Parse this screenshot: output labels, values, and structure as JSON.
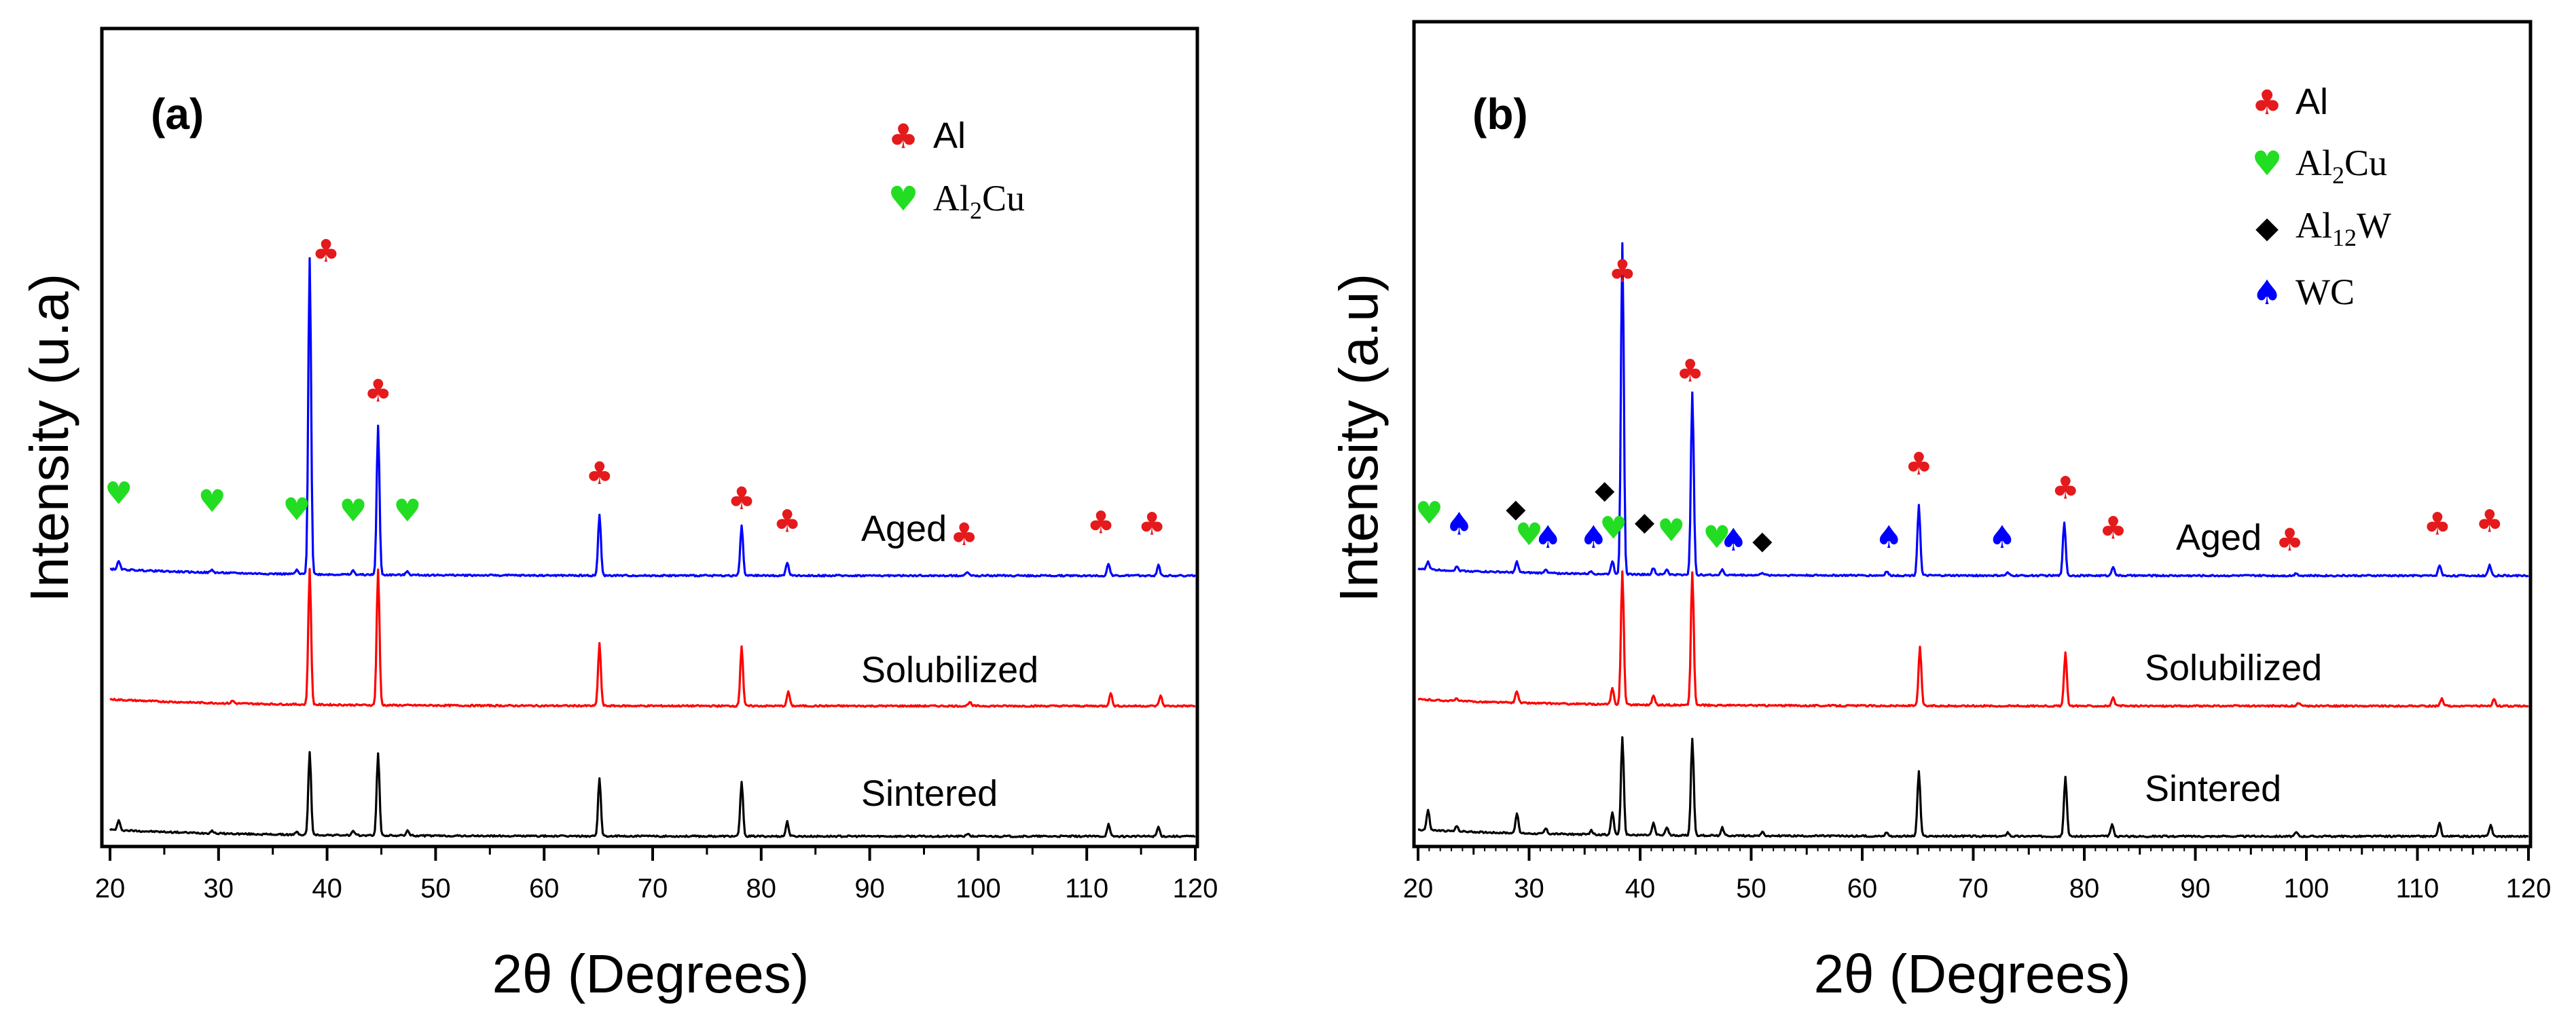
{
  "chart_data": [
    {
      "type": "line",
      "panel_label": "(a)",
      "xlabel": "2θ (Degrees)",
      "ylabel": "Intensity (u.a)",
      "xlim": [
        20,
        120
      ],
      "xticks": [
        20,
        30,
        40,
        50,
        60,
        70,
        80,
        90,
        100,
        110,
        120
      ],
      "yticks": "none",
      "legend": {
        "position": "top-right",
        "entries": [
          {
            "phase": "Al",
            "symbol": "club",
            "color": "#e41a1c",
            "text": "Al"
          },
          {
            "phase": "Al2Cu",
            "symbol": "heart",
            "color": "#22dd22",
            "text": "Al",
            "sub": "2",
            "suffix": "Cu"
          }
        ]
      },
      "series": [
        {
          "name": "Sintered",
          "label": "Sintered",
          "color": "#000000",
          "offset": 0,
          "peaks": [
            [
              20.8,
              0.07
            ],
            [
              29.4,
              0.02
            ],
            [
              37.2,
              0.02
            ],
            [
              38.4,
              0.62
            ],
            [
              42.4,
              0.03
            ],
            [
              44.7,
              0.62
            ],
            [
              47.4,
              0.04
            ],
            [
              65.1,
              0.44
            ],
            [
              78.2,
              0.41
            ],
            [
              82.4,
              0.11
            ],
            [
              99.0,
              0.02
            ],
            [
              112.0,
              0.09
            ],
            [
              116.6,
              0.07
            ]
          ]
        },
        {
          "name": "Solubilized",
          "label": "Solubilized",
          "color": "#ff0000",
          "offset": 1,
          "peaks": [
            [
              31.3,
              0.02
            ],
            [
              38.4,
              1.02
            ],
            [
              44.7,
              1.02
            ],
            [
              65.1,
              0.47
            ],
            [
              78.2,
              0.45
            ],
            [
              82.5,
              0.11
            ],
            [
              99.2,
              0.03
            ],
            [
              112.2,
              0.1
            ],
            [
              116.8,
              0.08
            ]
          ]
        },
        {
          "name": "Aged",
          "label": "Aged",
          "color": "#0000ff",
          "offset": 2,
          "peaks": [
            [
              20.8,
              0.06
            ],
            [
              29.4,
              0.02
            ],
            [
              37.2,
              0.03
            ],
            [
              38.4,
              2.38
            ],
            [
              42.4,
              0.03
            ],
            [
              44.7,
              1.12
            ],
            [
              47.4,
              0.03
            ],
            [
              65.1,
              0.46
            ],
            [
              78.2,
              0.38
            ],
            [
              82.4,
              0.1
            ],
            [
              99.0,
              0.03
            ],
            [
              112.0,
              0.09
            ],
            [
              116.6,
              0.08
            ]
          ]
        }
      ],
      "phase_markers": [
        {
          "phase": "Al2Cu",
          "x": 20.8,
          "y": 2.58
        },
        {
          "phase": "Al2Cu",
          "x": 29.4,
          "y": 2.52
        },
        {
          "phase": "Al2Cu",
          "x": 37.2,
          "y": 2.46
        },
        {
          "phase": "Al2Cu",
          "x": 42.4,
          "y": 2.45
        },
        {
          "phase": "Al2Cu",
          "x": 47.4,
          "y": 2.45
        },
        {
          "phase": "Al",
          "x": 39.9,
          "y": 4.4
        },
        {
          "phase": "Al",
          "x": 44.7,
          "y": 3.35
        },
        {
          "phase": "Al",
          "x": 65.1,
          "y": 2.73
        },
        {
          "phase": "Al",
          "x": 78.2,
          "y": 2.54
        },
        {
          "phase": "Al",
          "x": 82.4,
          "y": 2.37
        },
        {
          "phase": "Al",
          "x": 98.7,
          "y": 2.27
        },
        {
          "phase": "Al",
          "x": 111.3,
          "y": 2.36
        },
        {
          "phase": "Al",
          "x": 116.0,
          "y": 2.35
        }
      ]
    },
    {
      "type": "line",
      "panel_label": "(b)",
      "xlabel": "2θ (Degrees)",
      "ylabel": "Intensity (a.u)",
      "xlim": [
        20,
        120
      ],
      "xticks": [
        20,
        30,
        40,
        50,
        60,
        70,
        80,
        90,
        100,
        110,
        120
      ],
      "yticks": "none",
      "legend": {
        "position": "top-right",
        "entries": [
          {
            "phase": "Al",
            "symbol": "club",
            "color": "#e41a1c",
            "text": "Al"
          },
          {
            "phase": "Al2Cu",
            "symbol": "heart",
            "color": "#22dd22",
            "text": "Al",
            "sub": "2",
            "suffix": "Cu"
          },
          {
            "phase": "Al12W",
            "symbol": "diamond",
            "color": "#000000",
            "text": "Al",
            "sub": "12",
            "suffix": "W"
          },
          {
            "phase": "WC",
            "symbol": "spade",
            "color": "#0000ff",
            "text": "WC"
          }
        ]
      },
      "series": [
        {
          "name": "Sintered",
          "label": "Sintered",
          "color": "#000000",
          "offset": 0,
          "peaks": [
            [
              20.9,
              0.15
            ],
            [
              23.5,
              0.04
            ],
            [
              28.9,
              0.15
            ],
            [
              31.5,
              0.04
            ],
            [
              35.6,
              0.03
            ],
            [
              37.5,
              0.17
            ],
            [
              38.4,
              0.73
            ],
            [
              41.2,
              0.09
            ],
            [
              42.4,
              0.06
            ],
            [
              44.7,
              0.73
            ],
            [
              47.4,
              0.06
            ],
            [
              51.0,
              0.03
            ],
            [
              62.2,
              0.03
            ],
            [
              65.1,
              0.49
            ],
            [
              73.1,
              0.03
            ],
            [
              78.3,
              0.45
            ],
            [
              82.5,
              0.09
            ],
            [
              99.1,
              0.03
            ],
            [
              112.0,
              0.1
            ],
            [
              116.6,
              0.09
            ]
          ]
        },
        {
          "name": "Solubilized",
          "label": "Solubilized",
          "color": "#ff0000",
          "offset": 1,
          "peaks": [
            [
              23.5,
              0.02
            ],
            [
              28.9,
              0.09
            ],
            [
              37.5,
              0.12
            ],
            [
              38.4,
              1.0
            ],
            [
              41.2,
              0.07
            ],
            [
              44.7,
              1.0
            ],
            [
              65.2,
              0.44
            ],
            [
              78.3,
              0.4
            ],
            [
              82.6,
              0.06
            ],
            [
              99.3,
              0.02
            ],
            [
              112.2,
              0.06
            ],
            [
              116.9,
              0.05
            ]
          ]
        },
        {
          "name": "Aged",
          "label": "Aged",
          "color": "#0000ff",
          "offset": 2,
          "peaks": [
            [
              20.9,
              0.06
            ],
            [
              23.5,
              0.03
            ],
            [
              28.9,
              0.08
            ],
            [
              31.5,
              0.03
            ],
            [
              35.6,
              0.02
            ],
            [
              37.5,
              0.1
            ],
            [
              38.4,
              2.49
            ],
            [
              41.2,
              0.05
            ],
            [
              42.4,
              0.04
            ],
            [
              44.7,
              1.37
            ],
            [
              47.4,
              0.04
            ],
            [
              51.0,
              0.02
            ],
            [
              62.2,
              0.03
            ],
            [
              65.1,
              0.53
            ],
            [
              73.1,
              0.02
            ],
            [
              78.2,
              0.4
            ],
            [
              82.6,
              0.07
            ],
            [
              99.1,
              0.02
            ],
            [
              112.0,
              0.08
            ],
            [
              116.5,
              0.08
            ]
          ]
        }
      ],
      "phase_markers": [
        {
          "phase": "Al2Cu",
          "x": 21.0,
          "y": 2.43
        },
        {
          "phase": "WC",
          "x": 23.7,
          "y": 2.35
        },
        {
          "phase": "Al12W",
          "x": 28.8,
          "y": 2.48
        },
        {
          "phase": "Al2Cu",
          "x": 30.0,
          "y": 2.27
        },
        {
          "phase": "WC",
          "x": 31.7,
          "y": 2.25
        },
        {
          "phase": "WC",
          "x": 35.8,
          "y": 2.25
        },
        {
          "phase": "Al12W",
          "x": 36.8,
          "y": 2.62
        },
        {
          "phase": "Al2Cu",
          "x": 37.6,
          "y": 2.32
        },
        {
          "phase": "Al12W",
          "x": 40.4,
          "y": 2.38
        },
        {
          "phase": "Al2Cu",
          "x": 42.8,
          "y": 2.3
        },
        {
          "phase": "Al2Cu",
          "x": 46.9,
          "y": 2.25
        },
        {
          "phase": "WC",
          "x": 48.4,
          "y": 2.23
        },
        {
          "phase": "Al12W",
          "x": 51.0,
          "y": 2.24
        },
        {
          "phase": "WC",
          "x": 62.4,
          "y": 2.25
        },
        {
          "phase": "WC",
          "x": 72.6,
          "y": 2.25
        },
        {
          "phase": "Al",
          "x": 38.4,
          "y": 4.25
        },
        {
          "phase": "Al",
          "x": 44.5,
          "y": 3.5
        },
        {
          "phase": "Al",
          "x": 65.1,
          "y": 2.8
        },
        {
          "phase": "Al",
          "x": 78.3,
          "y": 2.62
        },
        {
          "phase": "Al",
          "x": 82.6,
          "y": 2.32
        },
        {
          "phase": "Al",
          "x": 98.5,
          "y": 2.23
        },
        {
          "phase": "Al",
          "x": 111.8,
          "y": 2.35
        },
        {
          "phase": "Al",
          "x": 116.5,
          "y": 2.37
        }
      ]
    }
  ]
}
